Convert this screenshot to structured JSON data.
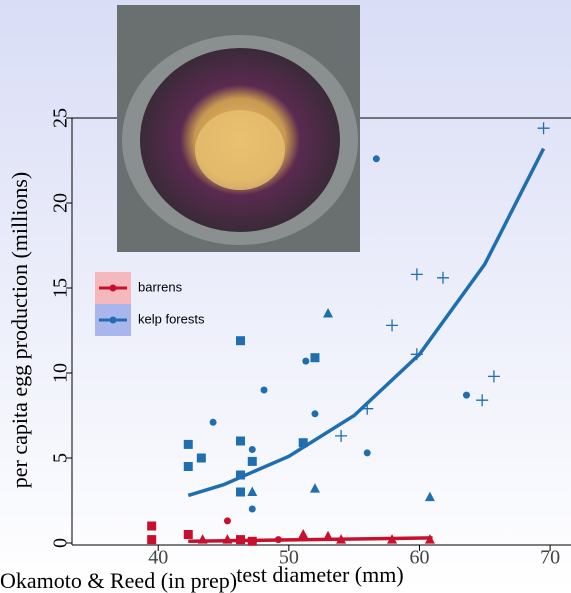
{
  "chart_data": {
    "type": "scatter",
    "xlabel": "test diameter (mm)",
    "ylabel": "per capita egg production (millions)",
    "source": "Okamoto & Reed (in prep)",
    "xlim": [
      33.4,
      71.6
    ],
    "ylim": [
      0,
      25
    ],
    "xticks": [
      40,
      50,
      60,
      70
    ],
    "yticks": [
      0,
      5,
      10,
      15,
      20,
      25
    ],
    "series": [
      {
        "name": "barrens",
        "color": "#c8102e",
        "x": [
          39.5,
          39.5,
          42.3,
          46.3,
          47.2,
          43.4,
          45.3,
          51.1,
          53.0,
          54.0,
          57.9,
          60.8,
          45.3,
          49.2
        ],
        "values": [
          1.0,
          0.2,
          0.5,
          0.2,
          0.1,
          0.2,
          0.2,
          0.5,
          0.4,
          0.2,
          0.2,
          0.2,
          1.3,
          0.2
        ],
        "markers": [
          "square",
          "square",
          "square",
          "square",
          "square",
          "triangle",
          "triangle",
          "triangle",
          "triangle",
          "triangle",
          "triangle",
          "triangle",
          "circle",
          "circle"
        ],
        "fit": {
          "x": [
            42.3,
            61.0
          ],
          "values": [
            0.1,
            0.3
          ]
        }
      },
      {
        "name": "kelp forests",
        "color": "#1f6fb0",
        "x": [
          42.3,
          42.3,
          43.3,
          46.3,
          46.3,
          46.3,
          46.3,
          47.2,
          51.1,
          52.0,
          44.2,
          47.2,
          47.2,
          48.1,
          51.3,
          52.0,
          56.0,
          56.7,
          63.6,
          47.2,
          53.0,
          52.0,
          60.8,
          54.0,
          56.0,
          57.9,
          59.8,
          59.8,
          61.8,
          64.8,
          65.7,
          69.5
        ],
        "values": [
          5.8,
          4.5,
          5.0,
          11.9,
          6.0,
          4.0,
          3.0,
          4.8,
          5.9,
          10.9,
          7.1,
          5.5,
          2.0,
          9.0,
          10.7,
          7.6,
          5.3,
          22.6,
          8.7,
          3.0,
          13.5,
          3.2,
          2.7,
          6.3,
          7.9,
          12.8,
          15.8,
          11.1,
          15.6,
          8.4,
          9.8,
          24.4
        ],
        "markers": [
          "square",
          "square",
          "square",
          "square",
          "square",
          "square",
          "square",
          "square",
          "square",
          "square",
          "circle",
          "circle",
          "circle",
          "circle",
          "circle",
          "circle",
          "circle",
          "circle",
          "circle",
          "triangle",
          "triangle",
          "triangle",
          "triangle",
          "plus",
          "plus",
          "plus",
          "plus",
          "plus",
          "plus",
          "plus",
          "plus",
          "plus"
        ],
        "fit": {
          "x": [
            42.3,
            45,
            50,
            55,
            60,
            65,
            69.5
          ],
          "values": [
            2.8,
            3.43,
            5.1,
            7.5,
            11.1,
            16.4,
            23.2
          ]
        }
      }
    ]
  }
}
